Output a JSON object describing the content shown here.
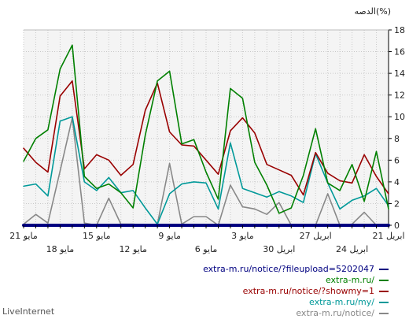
{
  "chart_data": {
    "type": "line",
    "title": "الدصه(%)",
    "ylabel": "",
    "xlabel": "",
    "ylim": [
      0,
      18
    ],
    "yticks": [
      0,
      2,
      4,
      6,
      8,
      10,
      12,
      14,
      16,
      18
    ],
    "grid": true,
    "point_count": 31,
    "x_ticks_upper": [
      {
        "index": 0,
        "label": "21 مايو"
      },
      {
        "index": 6,
        "label": "15 مايو"
      },
      {
        "index": 12,
        "label": "9 مايو"
      },
      {
        "index": 18,
        "label": "3 مايو"
      },
      {
        "index": 24,
        "label": "27 ابريل"
      },
      {
        "index": 30,
        "label": "21 ابريل"
      }
    ],
    "x_ticks_lower": [
      {
        "index": 3,
        "label": "18 مايو"
      },
      {
        "index": 9,
        "label": "12 مايو"
      },
      {
        "index": 15,
        "label": "6 مايو"
      },
      {
        "index": 21,
        "label": "30 ابريل"
      },
      {
        "index": 27,
        "label": "24 ابريل"
      }
    ],
    "series": [
      {
        "name": "extra-m.ru/notice/?fileupload=5202047",
        "color": "#000080",
        "values": [
          0,
          0,
          0,
          0,
          0,
          0,
          0,
          0,
          0,
          0,
          0,
          0,
          0,
          0,
          0,
          0,
          0,
          0,
          0,
          0,
          0,
          0,
          0,
          0,
          0,
          0,
          0,
          0,
          0,
          0,
          0
        ]
      },
      {
        "name": "extra-m.ru/",
        "color": "#008000",
        "values": [
          5.9,
          8.0,
          8.8,
          14.4,
          16.6,
          4.5,
          3.4,
          3.8,
          3.0,
          1.6,
          8.3,
          13.3,
          14.2,
          7.5,
          7.9,
          4.9,
          2.4,
          12.6,
          11.7,
          5.8,
          3.7,
          1.1,
          1.6,
          4.6,
          8.9,
          3.9,
          3.2,
          5.6,
          2.2,
          6.8,
          1.5
        ]
      },
      {
        "name": "extra-m.ru/notice/?showmy=1",
        "color": "#990000",
        "values": [
          7.1,
          5.8,
          4.9,
          11.9,
          13.3,
          5.2,
          6.5,
          6.0,
          4.6,
          5.6,
          10.6,
          13.1,
          8.6,
          7.4,
          7.3,
          6.0,
          4.7,
          8.7,
          9.9,
          8.5,
          5.6,
          5.1,
          4.6,
          2.8,
          6.7,
          4.8,
          4.1,
          3.9,
          6.5,
          4.5,
          2.9
        ]
      },
      {
        "name": "extra-m.ru/my/",
        "color": "#009999",
        "values": [
          3.6,
          3.8,
          2.7,
          9.6,
          10.0,
          4.0,
          3.2,
          4.4,
          3.0,
          3.2,
          1.6,
          0.1,
          2.9,
          3.8,
          4.0,
          3.9,
          1.5,
          7.6,
          3.4,
          3.0,
          2.6,
          3.1,
          2.7,
          2.1,
          6.6,
          3.9,
          1.5,
          2.3,
          2.7,
          3.4,
          1.8
        ]
      },
      {
        "name": "extra-m.ru/notice/",
        "color": "#888888",
        "values": [
          0.1,
          1.0,
          0.2,
          5.0,
          9.9,
          0.2,
          0.0,
          2.5,
          0.1,
          0.1,
          0.0,
          0.1,
          5.7,
          0.1,
          0.8,
          0.8,
          0.0,
          3.7,
          1.7,
          1.5,
          1.0,
          2.1,
          0.0,
          0.0,
          0.0,
          2.9,
          0.0,
          0.1,
          1.2,
          0.0,
          0.1
        ]
      }
    ]
  },
  "legend_order": [
    0,
    1,
    2,
    3,
    4
  ],
  "brand": "LiveInternet"
}
